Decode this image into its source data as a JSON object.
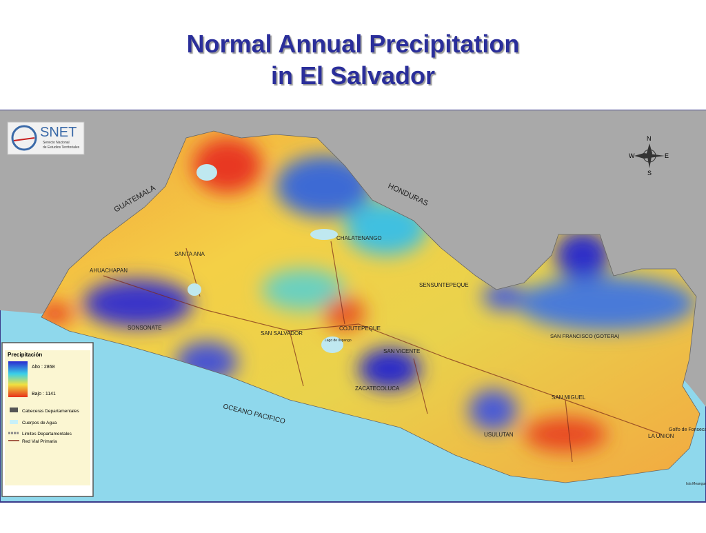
{
  "title": [
    "Normal Annual Precipitation",
    "in El Salvador"
  ],
  "logo": {
    "name": "SNET",
    "subtitle": [
      "Servicio Nacional",
      "de Estudios Territoriales"
    ]
  },
  "compass": [
    "N",
    "E",
    "S",
    "W"
  ],
  "labels": [
    "GUATEMALA",
    "HONDURAS",
    "OCEANO PACIFICO",
    "AHUACHAPAN",
    "SANTA ANA",
    "SONSONATE",
    "CHALATENANGO",
    "SENSUNTEPEQUE",
    "SAN SALVADOR",
    "COJUTEPEQUE",
    "SAN VICENTE",
    "ZACATECOLUCA",
    "SAN FRANCISCO (GOTERA)",
    "SAN MIGUEL",
    "USULUTAN",
    "LA UNION",
    "Golfo de Fonseca",
    "Lago de Ilopango",
    "Isla Meanguera"
  ],
  "legend": {
    "title": "Precipitación",
    "high": "Alto : 2868",
    "low": "Bajo : 1141",
    "items": [
      "Cabeceras Departamentales",
      "Cuerpos de Agua",
      "Limites Departamentales",
      "Red Vial Primaria"
    ]
  }
}
